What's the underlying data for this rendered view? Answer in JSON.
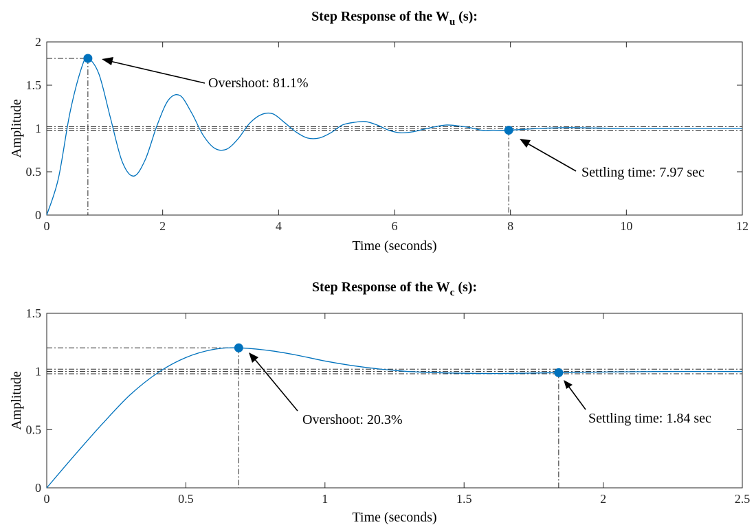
{
  "chart_data": [
    {
      "type": "line",
      "title": "Step Response of the W",
      "title_subscript": "u",
      "title_suffix": " (s):",
      "xlabel": "Time (seconds)",
      "ylabel": "Amplitude",
      "xlim": [
        0,
        12
      ],
      "ylim": [
        0,
        2
      ],
      "xticks": [
        0,
        2,
        4,
        6,
        8,
        10,
        12
      ],
      "yticks": [
        0,
        0.5,
        1,
        1.5,
        2
      ],
      "xtick_labels": [
        "0",
        "2",
        "4",
        "6",
        "8",
        "10",
        "12"
      ],
      "ytick_labels": [
        "0",
        "0.5",
        "1",
        "1.5",
        "2"
      ],
      "grid": false,
      "line_color": "#0072BD",
      "marker_color": "#0072BD",
      "series": [
        {
          "x": [
            0,
            0.2,
            0.4,
            0.6,
            0.71,
            0.9,
            1.1,
            1.3,
            1.5,
            1.7,
            1.9,
            2.1,
            2.3,
            2.5,
            2.7,
            2.9,
            3.1,
            3.3,
            3.5,
            3.7,
            3.9,
            4.1,
            4.3,
            4.5,
            4.7,
            4.9,
            5.1,
            5.3,
            5.5,
            5.7,
            5.9,
            6.1,
            6.3,
            6.5,
            6.7,
            6.9,
            7.1,
            7.3,
            7.5,
            7.7,
            7.97,
            8.5,
            9,
            10,
            11,
            12
          ],
          "y": [
            0,
            0.42,
            1.18,
            1.7,
            1.81,
            1.63,
            1.12,
            0.62,
            0.45,
            0.64,
            1.03,
            1.33,
            1.38,
            1.18,
            0.92,
            0.77,
            0.76,
            0.88,
            1.06,
            1.16,
            1.17,
            1.07,
            0.96,
            0.89,
            0.89,
            0.95,
            1.04,
            1.07,
            1.08,
            1.04,
            0.98,
            0.95,
            0.96,
            0.99,
            1.02,
            1.04,
            1.03,
            1.01,
            0.98,
            0.98,
            0.98,
            1.0,
            1.01,
            1.0,
            1.0,
            1.0
          ]
        }
      ],
      "reference_lines": {
        "overshoot_peak": {
          "x": 0.71,
          "y": 1.81
        },
        "settling": {
          "x": 7.97,
          "y": 0.98
        },
        "band": [
          0.98,
          1.0,
          1.02
        ]
      },
      "annotations": [
        {
          "text": "Overshoot: 81.1%",
          "target_x": 0.71,
          "target_y": 1.81
        },
        {
          "text": "Settling time: 7.97 sec",
          "target_x": 7.97,
          "target_y": 0.98
        }
      ]
    },
    {
      "type": "line",
      "title": "Step Response of the W",
      "title_subscript": "c",
      "title_suffix": " (s):",
      "xlabel": "Time (seconds)",
      "ylabel": "Amplitude",
      "xlim": [
        0,
        2.5
      ],
      "ylim": [
        0,
        1.5
      ],
      "xticks": [
        0,
        0.5,
        1,
        1.5,
        2,
        2.5
      ],
      "yticks": [
        0,
        0.5,
        1,
        1.5
      ],
      "xtick_labels": [
        "0",
        "0.5",
        "1",
        "1.5",
        "2",
        "2.5"
      ],
      "ytick_labels": [
        "0",
        "0.5",
        "1",
        "1.5"
      ],
      "grid": false,
      "line_color": "#0072BD",
      "marker_color": "#0072BD",
      "series": [
        {
          "x": [
            0,
            0.1,
            0.2,
            0.3,
            0.4,
            0.5,
            0.6,
            0.69,
            0.8,
            0.9,
            1.0,
            1.1,
            1.2,
            1.3,
            1.4,
            1.5,
            1.6,
            1.7,
            1.84,
            2.0,
            2.2,
            2.5
          ],
          "y": [
            0,
            0.28,
            0.55,
            0.8,
            0.99,
            1.12,
            1.19,
            1.203,
            1.18,
            1.14,
            1.09,
            1.05,
            1.02,
            1.0,
            0.99,
            0.985,
            0.983,
            0.985,
            0.99,
            0.995,
            1.0,
            1.0
          ]
        }
      ],
      "reference_lines": {
        "overshoot_peak": {
          "x": 0.69,
          "y": 1.203
        },
        "settling": {
          "x": 1.84,
          "y": 0.99
        },
        "band": [
          0.98,
          1.0,
          1.02
        ]
      },
      "annotations": [
        {
          "text": "Overshoot: 20.3%",
          "target_x": 0.69,
          "target_y": 1.203
        },
        {
          "text": "Settling time: 1.84 sec",
          "target_x": 1.84,
          "target_y": 0.99
        }
      ]
    }
  ]
}
